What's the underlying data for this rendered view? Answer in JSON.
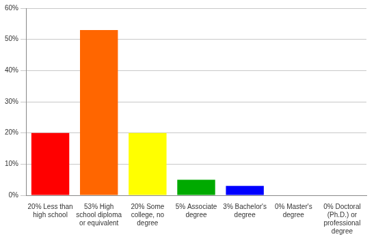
{
  "chart_data": {
    "type": "bar",
    "categories": [
      "20% Less than high school",
      "53% High school diploma or equivalent",
      "20% Some college, no degree",
      "5% Associate degree",
      "3% Bachelor's degree",
      "0% Master's degree",
      "0% Doctoral (Ph.D.) or professional degree"
    ],
    "values": [
      20,
      53,
      20,
      5,
      3,
      0,
      0
    ],
    "colors": [
      "#ff0000",
      "#ff6600",
      "#ffff00",
      "#00aa00",
      "#0000ff",
      "#9900ff",
      "#ff00ff"
    ],
    "ylim": [
      0,
      60
    ],
    "yticks": [
      {
        "value": 0,
        "label": "0%"
      },
      {
        "value": 10,
        "label": "10%"
      },
      {
        "value": 20,
        "label": "20%"
      },
      {
        "value": 30,
        "label": "30%"
      },
      {
        "value": 40,
        "label": "40%"
      },
      {
        "value": 50,
        "label": "50%"
      },
      {
        "value": 60,
        "label": "60%"
      }
    ],
    "grid": true
  }
}
